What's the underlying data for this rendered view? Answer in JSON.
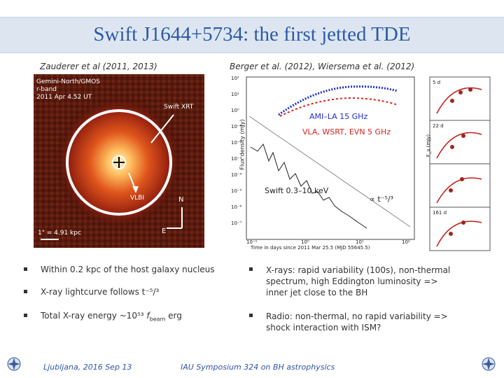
{
  "slide": {
    "title": "Swift J1644+5734: the first jetted TDE",
    "left_caption": "Zauderer et al (2011, 2013)",
    "right_caption": "Berger et al. (2012), Wiersema et al. (2012)"
  },
  "optical_image": {
    "telescope": "Gemini-North/GMOS",
    "band": "r-band",
    "date": "2011 Apr 4.52 UT",
    "xrt_label": "Swift XRT",
    "vlbi_label": "VLBI",
    "north": "N",
    "east": "E",
    "scale": "1\" = 4.91 kpc"
  },
  "lightcurve": {
    "ylabel": "Flux density (mJy)",
    "xlabel": "Time in days since 2011 Mar 25.5 (MJD 55645.5)",
    "y_ticks": [
      "10²",
      "10¹",
      "10⁰",
      "10⁻¹",
      "10⁻²",
      "10⁻³",
      "10⁻⁴",
      "10⁻⁵",
      "10⁻⁶",
      "10⁻⁷"
    ],
    "x_ticks": [
      "10⁻¹",
      "10⁰",
      "10¹",
      "10²"
    ],
    "ami_label": "AMI–LA 15 GHz",
    "vla_label": "VLA, WSRT, EVN 5 GHz",
    "swift_label": "Swift 0.3–10 keV",
    "slope_label": "∝ t⁻⁵/³",
    "ami_color": "#1f2fd0",
    "vla_color": "#d8241b"
  },
  "sed_panels": {
    "ylabel": "F_ν (mJy)",
    "labels": [
      "5 d",
      "22 d",
      "",
      "161 d"
    ]
  },
  "left_bullets": {
    "b1": "Within 0.2 kpc of the host galaxy nucleus",
    "b2": "X-ray lightcurve follows t⁻⁵/³",
    "b3_main": "Total X-ray energy ~10⁵³",
    "b3_f": "f",
    "b3_sub": "beam",
    "b3_end": " erg"
  },
  "right_bullets": {
    "b1_l1": "X-rays: rapid variability (100s), non-thermal",
    "b1_l2": "spectrum, high Eddington luminosity =>",
    "b1_l3": "inner jet close to the BH",
    "b2_l1": "Radio: non-thermal, no rapid variability =>",
    "b2_l2": "shock interaction with ISM?"
  },
  "footer": {
    "left": "Ljubljana, 2016 Sep 13",
    "center": "IAU Symposium 324 on BH astrophysics"
  }
}
